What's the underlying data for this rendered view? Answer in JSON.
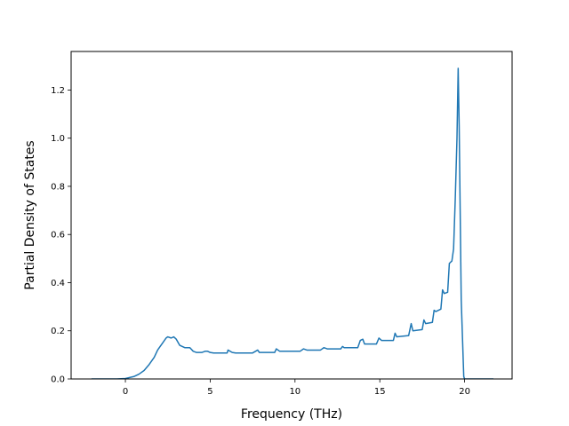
{
  "chart_data": {
    "type": "line",
    "title": "",
    "xlabel": "Frequency (THz)",
    "ylabel": "Partial Density of States",
    "xlim": [
      -3.2,
      22.8
    ],
    "ylim": [
      0.0,
      1.36
    ],
    "xticks": [
      0,
      5,
      10,
      15,
      20
    ],
    "yticks": [
      0.0,
      0.2,
      0.4,
      0.6,
      0.8,
      1.0,
      1.2
    ],
    "xtick_labels": [
      "0",
      "5",
      "10",
      "15",
      "20"
    ],
    "ytick_labels": [
      "0.0",
      "0.2",
      "0.4",
      "0.6",
      "0.8",
      "1.0",
      "1.2"
    ],
    "grid": false,
    "legend": "none",
    "series": [
      {
        "color": "#1f77b4",
        "x": [
          -2.0,
          -0.5,
          0.0,
          0.5,
          0.8,
          1.1,
          1.4,
          1.7,
          1.9,
          2.0,
          2.2,
          2.4,
          2.5,
          2.7,
          2.85,
          3.0,
          3.2,
          3.5,
          3.8,
          4.0,
          4.2,
          4.5,
          4.7,
          4.85,
          5.0,
          5.2,
          6.0,
          6.05,
          6.3,
          6.5,
          7.5,
          7.8,
          7.9,
          8.8,
          8.9,
          9.1,
          10.3,
          10.5,
          10.7,
          11.5,
          11.7,
          11.9,
          12.7,
          12.8,
          12.9,
          13.7,
          13.85,
          14.0,
          14.1,
          14.8,
          14.95,
          15.1,
          15.8,
          15.9,
          16.0,
          16.7,
          16.85,
          16.95,
          17.5,
          17.6,
          17.7,
          18.1,
          18.2,
          18.3,
          18.6,
          18.7,
          18.8,
          19.0,
          19.1,
          19.25,
          19.35,
          19.45,
          19.55,
          19.62,
          19.68,
          19.8,
          19.95,
          20.0,
          21.7
        ],
        "y": [
          0.0,
          0.0,
          0.002,
          0.01,
          0.02,
          0.035,
          0.06,
          0.09,
          0.12,
          0.13,
          0.15,
          0.17,
          0.175,
          0.17,
          0.175,
          0.165,
          0.14,
          0.13,
          0.13,
          0.115,
          0.11,
          0.11,
          0.115,
          0.115,
          0.11,
          0.108,
          0.108,
          0.12,
          0.11,
          0.108,
          0.108,
          0.12,
          0.11,
          0.11,
          0.125,
          0.115,
          0.115,
          0.125,
          0.12,
          0.12,
          0.13,
          0.125,
          0.125,
          0.135,
          0.13,
          0.13,
          0.16,
          0.165,
          0.145,
          0.145,
          0.17,
          0.16,
          0.16,
          0.19,
          0.175,
          0.18,
          0.23,
          0.2,
          0.205,
          0.245,
          0.23,
          0.235,
          0.285,
          0.28,
          0.29,
          0.37,
          0.355,
          0.36,
          0.48,
          0.49,
          0.54,
          0.75,
          1.0,
          1.29,
          1.05,
          0.33,
          0.01,
          0.0,
          0.0
        ]
      }
    ]
  }
}
